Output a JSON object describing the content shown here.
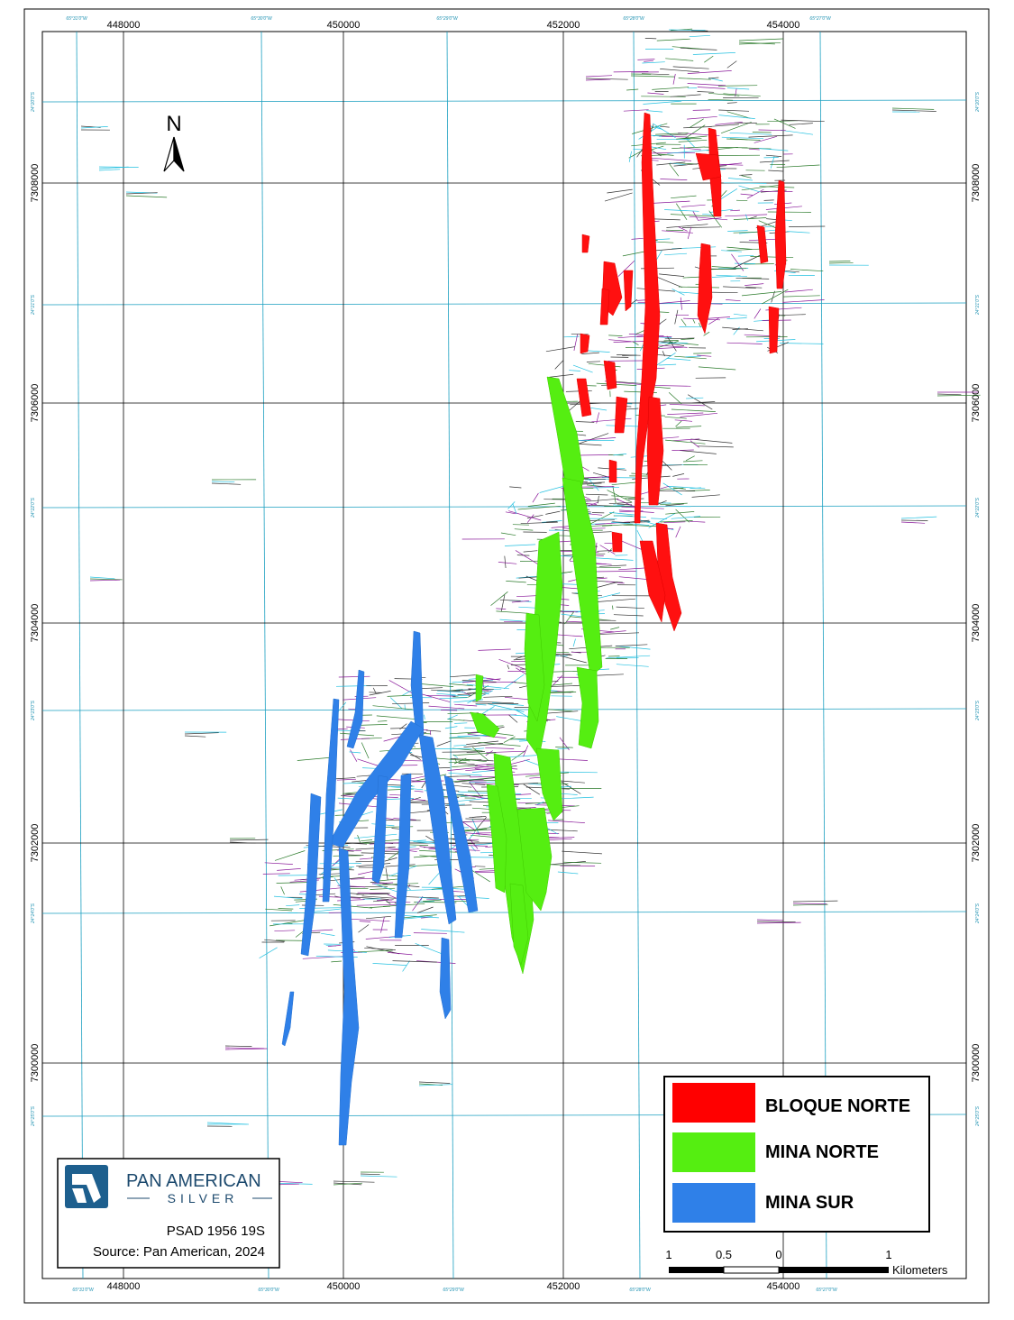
{
  "projection": "PSAD 1956 19S",
  "source": "Source: Pan American, 2024",
  "logo": {
    "line1": "PAN AMERICAN",
    "line2": "SILVER",
    "icon": "pan-american-logo-icon"
  },
  "north_arrow": {
    "label": "N",
    "icon": "north-arrow-icon"
  },
  "easting_labels": [
    "448000",
    "450000",
    "452000",
    "454000"
  ],
  "northing_labels": [
    "7308000",
    "7306000",
    "7304000",
    "7302000",
    "7300000"
  ],
  "longitude_labels": [
    "65°31'0\"W",
    "65°30'0\"W",
    "65°29'0\"W",
    "65°28'0\"W",
    "65°27'0\"W"
  ],
  "latitude_labels": [
    "24°20'0\"S",
    "24°21'0\"S",
    "24°22'0\"S",
    "24°23'0\"S",
    "24°24'0\"S",
    "24°25'0\"S"
  ],
  "legend": [
    {
      "label": "BLOQUE NORTE",
      "color": "#ff0000"
    },
    {
      "label": "MINA NORTE",
      "color": "#55ee11"
    },
    {
      "label": "MINA SUR",
      "color": "#2f80e8"
    }
  ],
  "scale_bar": {
    "ticks": [
      "1",
      "0.5",
      "0",
      "1"
    ],
    "unit": "Kilometers"
  },
  "colors": {
    "utm_grid": "#000000",
    "geo_grid": "#1a9fc0",
    "drill_purple": "#8a1a9a",
    "drill_green": "#2a7a2a",
    "drill_cyan": "#22c0e0"
  }
}
